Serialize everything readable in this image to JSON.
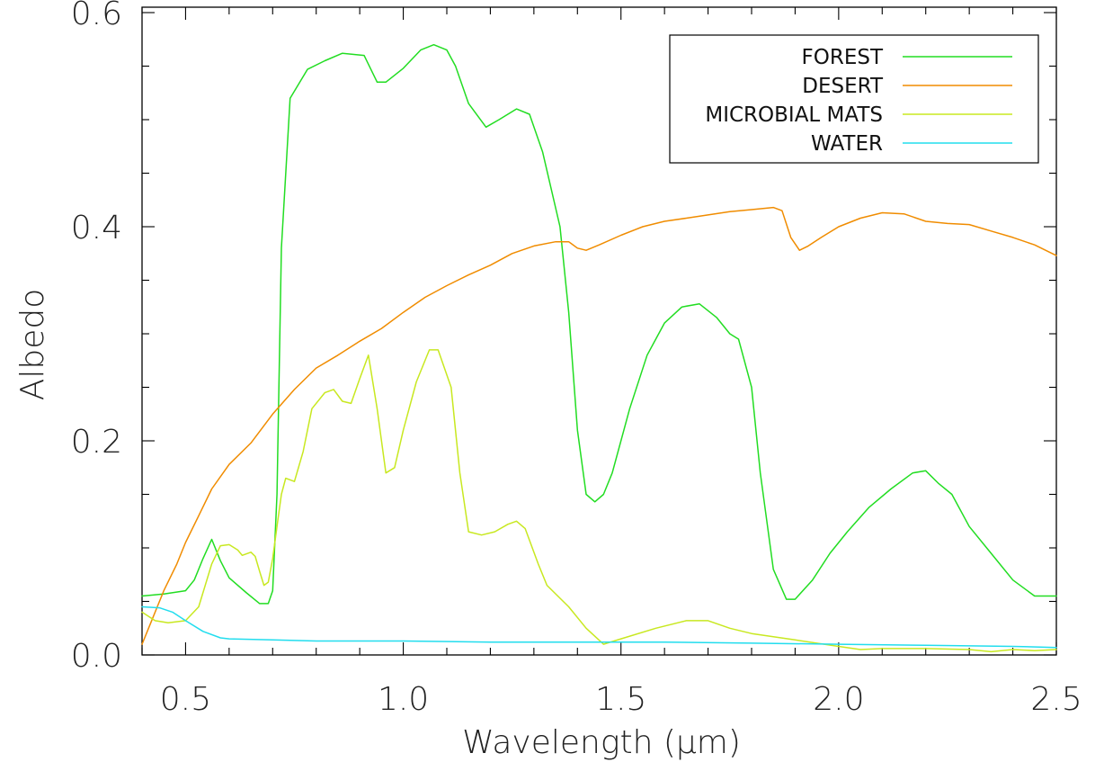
{
  "chart_data": {
    "type": "line",
    "title": "",
    "xlabel": "Wavelength (μm)",
    "ylabel": "Albedo",
    "xlim": [
      0.4,
      2.5
    ],
    "ylim": [
      0.0,
      0.6
    ],
    "x_ticks": [
      "0.5",
      "1.0",
      "1.5",
      "2.0",
      "2.5"
    ],
    "y_ticks": [
      "0.0",
      "0.2",
      "0.4",
      "0.6"
    ],
    "grid": false,
    "legend_position": "top-right",
    "series": [
      {
        "name": "FOREST",
        "color": "#22dd22",
        "points": [
          [
            0.4,
            0.055
          ],
          [
            0.45,
            0.057
          ],
          [
            0.5,
            0.06
          ],
          [
            0.52,
            0.07
          ],
          [
            0.54,
            0.09
          ],
          [
            0.56,
            0.108
          ],
          [
            0.58,
            0.088
          ],
          [
            0.6,
            0.072
          ],
          [
            0.64,
            0.058
          ],
          [
            0.67,
            0.048
          ],
          [
            0.69,
            0.048
          ],
          [
            0.7,
            0.06
          ],
          [
            0.71,
            0.15
          ],
          [
            0.72,
            0.38
          ],
          [
            0.74,
            0.52
          ],
          [
            0.78,
            0.547
          ],
          [
            0.82,
            0.555
          ],
          [
            0.86,
            0.562
          ],
          [
            0.91,
            0.56
          ],
          [
            0.94,
            0.535
          ],
          [
            0.96,
            0.535
          ],
          [
            1.0,
            0.548
          ],
          [
            1.04,
            0.565
          ],
          [
            1.07,
            0.57
          ],
          [
            1.1,
            0.565
          ],
          [
            1.12,
            0.55
          ],
          [
            1.15,
            0.515
          ],
          [
            1.19,
            0.493
          ],
          [
            1.22,
            0.5
          ],
          [
            1.26,
            0.51
          ],
          [
            1.29,
            0.505
          ],
          [
            1.32,
            0.47
          ],
          [
            1.36,
            0.4
          ],
          [
            1.38,
            0.32
          ],
          [
            1.4,
            0.21
          ],
          [
            1.42,
            0.15
          ],
          [
            1.44,
            0.143
          ],
          [
            1.46,
            0.15
          ],
          [
            1.48,
            0.17
          ],
          [
            1.52,
            0.23
          ],
          [
            1.56,
            0.28
          ],
          [
            1.6,
            0.31
          ],
          [
            1.64,
            0.325
          ],
          [
            1.68,
            0.328
          ],
          [
            1.72,
            0.315
          ],
          [
            1.75,
            0.3
          ],
          [
            1.77,
            0.295
          ],
          [
            1.8,
            0.25
          ],
          [
            1.82,
            0.17
          ],
          [
            1.85,
            0.08
          ],
          [
            1.88,
            0.052
          ],
          [
            1.9,
            0.052
          ],
          [
            1.94,
            0.07
          ],
          [
            1.98,
            0.095
          ],
          [
            2.02,
            0.115
          ],
          [
            2.07,
            0.138
          ],
          [
            2.12,
            0.155
          ],
          [
            2.17,
            0.17
          ],
          [
            2.2,
            0.172
          ],
          [
            2.23,
            0.16
          ],
          [
            2.26,
            0.15
          ],
          [
            2.3,
            0.12
          ],
          [
            2.35,
            0.095
          ],
          [
            2.4,
            0.07
          ],
          [
            2.45,
            0.055
          ],
          [
            2.5,
            0.055
          ]
        ]
      },
      {
        "name": "DESERT",
        "color": "#f08c00",
        "points": [
          [
            0.4,
            0.01
          ],
          [
            0.42,
            0.03
          ],
          [
            0.45,
            0.06
          ],
          [
            0.48,
            0.085
          ],
          [
            0.5,
            0.105
          ],
          [
            0.53,
            0.13
          ],
          [
            0.56,
            0.155
          ],
          [
            0.6,
            0.178
          ],
          [
            0.65,
            0.198
          ],
          [
            0.7,
            0.225
          ],
          [
            0.75,
            0.248
          ],
          [
            0.8,
            0.268
          ],
          [
            0.85,
            0.28
          ],
          [
            0.9,
            0.293
          ],
          [
            0.95,
            0.305
          ],
          [
            1.0,
            0.32
          ],
          [
            1.05,
            0.334
          ],
          [
            1.1,
            0.345
          ],
          [
            1.15,
            0.355
          ],
          [
            1.2,
            0.364
          ],
          [
            1.25,
            0.375
          ],
          [
            1.3,
            0.382
          ],
          [
            1.35,
            0.386
          ],
          [
            1.38,
            0.386
          ],
          [
            1.4,
            0.38
          ],
          [
            1.42,
            0.378
          ],
          [
            1.45,
            0.383
          ],
          [
            1.5,
            0.392
          ],
          [
            1.55,
            0.4
          ],
          [
            1.6,
            0.405
          ],
          [
            1.65,
            0.408
          ],
          [
            1.7,
            0.411
          ],
          [
            1.75,
            0.414
          ],
          [
            1.8,
            0.416
          ],
          [
            1.85,
            0.418
          ],
          [
            1.87,
            0.415
          ],
          [
            1.89,
            0.39
          ],
          [
            1.91,
            0.378
          ],
          [
            1.93,
            0.382
          ],
          [
            1.96,
            0.39
          ],
          [
            2.0,
            0.4
          ],
          [
            2.05,
            0.408
          ],
          [
            2.1,
            0.413
          ],
          [
            2.15,
            0.412
          ],
          [
            2.2,
            0.405
          ],
          [
            2.25,
            0.403
          ],
          [
            2.3,
            0.402
          ],
          [
            2.35,
            0.396
          ],
          [
            2.4,
            0.39
          ],
          [
            2.45,
            0.383
          ],
          [
            2.5,
            0.373
          ]
        ]
      },
      {
        "name": "MICROBIAL MATS",
        "color": "#c8e820",
        "points": [
          [
            0.4,
            0.04
          ],
          [
            0.43,
            0.032
          ],
          [
            0.46,
            0.03
          ],
          [
            0.5,
            0.032
          ],
          [
            0.53,
            0.045
          ],
          [
            0.56,
            0.085
          ],
          [
            0.58,
            0.102
          ],
          [
            0.6,
            0.103
          ],
          [
            0.62,
            0.098
          ],
          [
            0.63,
            0.093
          ],
          [
            0.65,
            0.096
          ],
          [
            0.66,
            0.092
          ],
          [
            0.67,
            0.078
          ],
          [
            0.68,
            0.065
          ],
          [
            0.69,
            0.068
          ],
          [
            0.7,
            0.09
          ],
          [
            0.71,
            0.12
          ],
          [
            0.72,
            0.15
          ],
          [
            0.73,
            0.165
          ],
          [
            0.75,
            0.162
          ],
          [
            0.77,
            0.19
          ],
          [
            0.79,
            0.23
          ],
          [
            0.82,
            0.245
          ],
          [
            0.84,
            0.248
          ],
          [
            0.86,
            0.237
          ],
          [
            0.88,
            0.235
          ],
          [
            0.9,
            0.258
          ],
          [
            0.92,
            0.28
          ],
          [
            0.94,
            0.23
          ],
          [
            0.96,
            0.17
          ],
          [
            0.98,
            0.175
          ],
          [
            1.0,
            0.21
          ],
          [
            1.03,
            0.255
          ],
          [
            1.06,
            0.285
          ],
          [
            1.08,
            0.285
          ],
          [
            1.11,
            0.25
          ],
          [
            1.13,
            0.17
          ],
          [
            1.15,
            0.115
          ],
          [
            1.18,
            0.112
          ],
          [
            1.21,
            0.115
          ],
          [
            1.24,
            0.122
          ],
          [
            1.26,
            0.125
          ],
          [
            1.28,
            0.118
          ],
          [
            1.31,
            0.085
          ],
          [
            1.33,
            0.065
          ],
          [
            1.38,
            0.045
          ],
          [
            1.42,
            0.025
          ],
          [
            1.46,
            0.01
          ],
          [
            1.5,
            0.015
          ],
          [
            1.58,
            0.025
          ],
          [
            1.65,
            0.032
          ],
          [
            1.7,
            0.032
          ],
          [
            1.75,
            0.025
          ],
          [
            1.8,
            0.02
          ],
          [
            1.9,
            0.014
          ],
          [
            2.0,
            0.008
          ],
          [
            2.05,
            0.005
          ],
          [
            2.1,
            0.006
          ],
          [
            2.2,
            0.006
          ],
          [
            2.3,
            0.005
          ],
          [
            2.35,
            0.003
          ],
          [
            2.4,
            0.005
          ],
          [
            2.45,
            0.004
          ],
          [
            2.5,
            0.005
          ]
        ]
      },
      {
        "name": "WATER",
        "color": "#22ddee",
        "points": [
          [
            0.4,
            0.045
          ],
          [
            0.44,
            0.044
          ],
          [
            0.47,
            0.04
          ],
          [
            0.5,
            0.032
          ],
          [
            0.54,
            0.022
          ],
          [
            0.58,
            0.016
          ],
          [
            0.6,
            0.015
          ],
          [
            0.7,
            0.014
          ],
          [
            0.8,
            0.013
          ],
          [
            1.0,
            0.013
          ],
          [
            1.2,
            0.012
          ],
          [
            1.4,
            0.012
          ],
          [
            1.6,
            0.012
          ],
          [
            1.8,
            0.011
          ],
          [
            2.0,
            0.01
          ],
          [
            2.2,
            0.009
          ],
          [
            2.4,
            0.008
          ],
          [
            2.5,
            0.007
          ]
        ]
      }
    ]
  }
}
